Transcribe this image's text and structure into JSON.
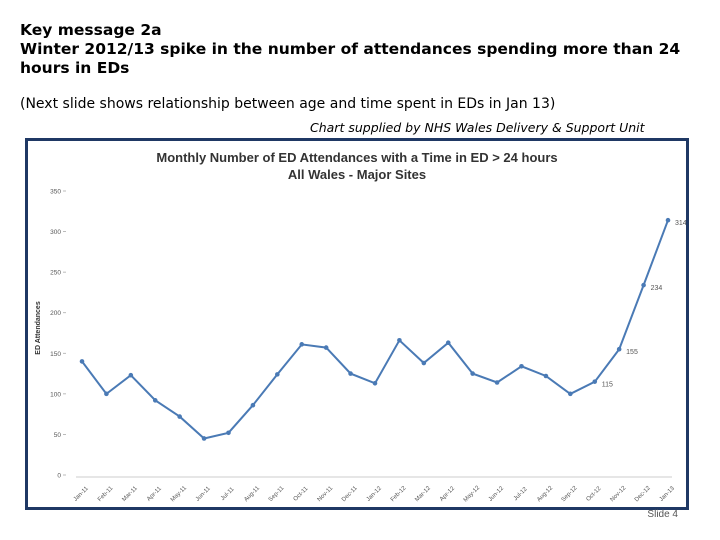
{
  "slide": {
    "heading": "Key message 2a",
    "subheading": "Winter 2012/13 spike in the number of attendances spending more than 24 hours in EDs",
    "note": "(Next slide shows relationship between age and time spent in EDs in Jan 13)",
    "credit": "Chart supplied by NHS Wales Delivery & Support Unit",
    "slide_number": "Slide 4"
  },
  "chart_data": {
    "type": "line",
    "title": "Monthly Number of ED Attendances with a Time in ED > 24 hours",
    "subtitle": "All Wales - Major Sites",
    "xlabel": "",
    "ylabel": "ED Attendances",
    "ylim": [
      0,
      350
    ],
    "yticks": [
      0,
      50,
      100,
      150,
      200,
      250,
      300,
      350
    ],
    "grid": false,
    "legend": "none",
    "color": "#4a7ab5",
    "categories": [
      "Jan-11",
      "Feb-11",
      "Mar-11",
      "Apr-11",
      "May-11",
      "Jun-11",
      "Jul-11",
      "Aug-11",
      "Sep-11",
      "Oct-11",
      "Nov-11",
      "Dec-11",
      "Jan-12",
      "Feb-12",
      "Mar-12",
      "Apr-12",
      "May-12",
      "Jun-12",
      "Jul-12",
      "Aug-12",
      "Sep-12",
      "Oct-12",
      "Nov-12",
      "Dec-12",
      "Jan-13"
    ],
    "series": [
      {
        "values": [
          140,
          100,
          123,
          92,
          72,
          45,
          52,
          86,
          124,
          161,
          157,
          125,
          113,
          166,
          138,
          163,
          125,
          114,
          134,
          122,
          100,
          115,
          155,
          234,
          314
        ],
        "labels": [
          "",
          "",
          "",
          "",
          "",
          "",
          "",
          "",
          "",
          "",
          "",
          "",
          "",
          "",
          "",
          "",
          "",
          "",
          "",
          "",
          "",
          "115",
          "155",
          "234",
          "314"
        ]
      }
    ]
  }
}
